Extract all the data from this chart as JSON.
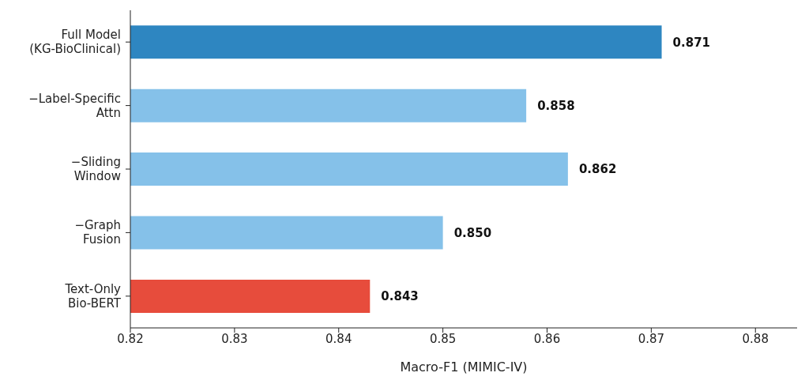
{
  "chart_data": {
    "type": "bar",
    "orientation": "horizontal",
    "xlabel": "Macro-F1 (MIMIC-IV)",
    "categories": [
      "Full Model\n(KG-BioClinical)",
      "−Label-Specific\nAttn",
      "−Sliding\nWindow",
      "−Graph\nFusion",
      "Text-Only\nBio-BERT"
    ],
    "values": [
      0.871,
      0.858,
      0.862,
      0.85,
      0.843
    ],
    "colors": [
      "#2e86c1",
      "#85c1e9",
      "#85c1e9",
      "#85c1e9",
      "#e74c3c"
    ],
    "value_labels": [
      "0.871",
      "0.858",
      "0.862",
      "0.850",
      "0.843"
    ],
    "xlim": [
      0.82,
      0.884
    ],
    "xticks": [
      0.82,
      0.83,
      0.84,
      0.85,
      0.86,
      0.87,
      0.88
    ],
    "grid": false
  }
}
